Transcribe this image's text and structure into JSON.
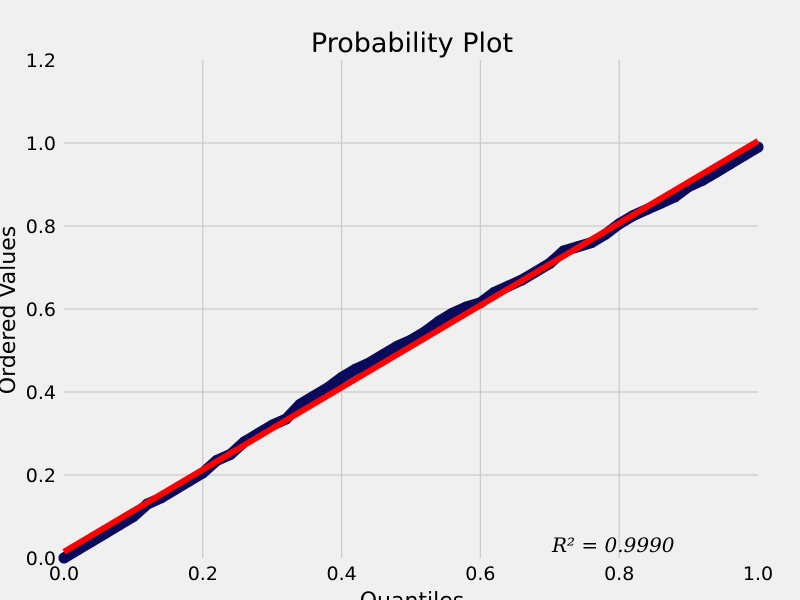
{
  "chart_data": {
    "type": "scatter",
    "title": "Probability Plot",
    "xlabel": "Quantiles",
    "ylabel": "Ordered Values",
    "xlim": [
      0.0,
      1.0
    ],
    "ylim": [
      0.0,
      1.2
    ],
    "xticks": [
      "0.0",
      "0.2",
      "0.4",
      "0.6",
      "0.8",
      "1.0"
    ],
    "yticks": [
      "0.0",
      "0.2",
      "0.4",
      "0.6",
      "0.8",
      "1.0",
      "1.2"
    ],
    "grid": true,
    "annotation": "R² = 0.9990",
    "colors": {
      "points": "#0b0b5c",
      "fit_line": "#ff0000",
      "grid": "#cbcbcb",
      "background": "#f0f0f0"
    },
    "series": [
      {
        "kind": "points",
        "x": [
          0.0,
          0.02,
          0.04,
          0.06,
          0.08,
          0.1,
          0.12,
          0.14,
          0.16,
          0.18,
          0.2,
          0.22,
          0.24,
          0.26,
          0.28,
          0.3,
          0.32,
          0.34,
          0.36,
          0.38,
          0.4,
          0.42,
          0.44,
          0.46,
          0.48,
          0.5,
          0.52,
          0.54,
          0.56,
          0.58,
          0.6,
          0.62,
          0.64,
          0.66,
          0.68,
          0.7,
          0.72,
          0.74,
          0.76,
          0.78,
          0.8,
          0.82,
          0.84,
          0.86,
          0.88,
          0.9,
          0.92,
          0.94,
          0.96,
          0.98,
          1.0
        ],
        "y": [
          0.0,
          0.02,
          0.04,
          0.06,
          0.08,
          0.1,
          0.13,
          0.145,
          0.165,
          0.185,
          0.205,
          0.235,
          0.25,
          0.28,
          0.3,
          0.32,
          0.335,
          0.37,
          0.39,
          0.41,
          0.435,
          0.455,
          0.47,
          0.49,
          0.51,
          0.525,
          0.545,
          0.57,
          0.59,
          0.605,
          0.615,
          0.64,
          0.655,
          0.67,
          0.69,
          0.71,
          0.74,
          0.75,
          0.76,
          0.78,
          0.805,
          0.825,
          0.84,
          0.855,
          0.87,
          0.895,
          0.91,
          0.93,
          0.95,
          0.97,
          0.99
        ]
      },
      {
        "kind": "fit_line",
        "x": [
          0.0,
          1.0
        ],
        "y": [
          0.015,
          1.005
        ]
      }
    ]
  }
}
